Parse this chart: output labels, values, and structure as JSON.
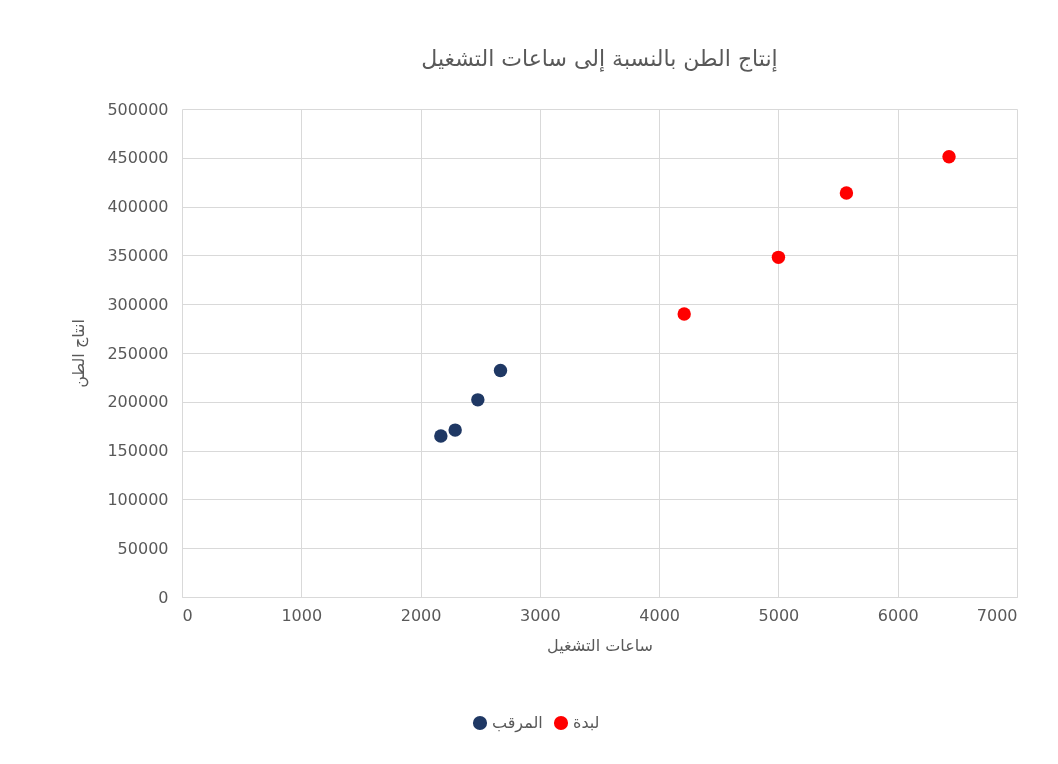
{
  "chart_data": {
    "type": "scatter",
    "title": "إنتاج الطن بالنسبة إلى ساعات التشغيل",
    "xlabel": "ساعات التشغيل",
    "ylabel": "انتاج الطن",
    "series": [
      {
        "name": "المرقب",
        "color": "#1f3864",
        "x": [
          2170,
          2290,
          2480,
          2670
        ],
        "values": [
          165000,
          171000,
          202000,
          232000
        ]
      },
      {
        "name": "لبدة",
        "color": "#ff0000",
        "x": [
          4210,
          5000,
          5570,
          6430
        ],
        "values": [
          290000,
          348000,
          414000,
          451000
        ]
      }
    ],
    "xlim": [
      0,
      7000
    ],
    "xticks": [
      0,
      1000,
      2000,
      3000,
      4000,
      5000,
      6000,
      7000
    ],
    "ylim": [
      0,
      500000
    ],
    "yticks": [
      0,
      50000,
      100000,
      150000,
      200000,
      250000,
      300000,
      350000,
      400000,
      450000,
      500000
    ],
    "grid": true,
    "legend": "bottom",
    "marker": "circle"
  }
}
